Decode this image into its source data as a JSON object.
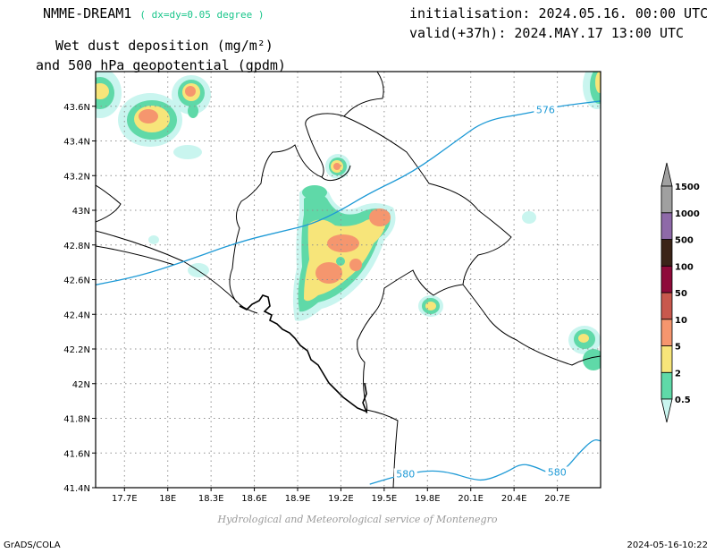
{
  "header": {
    "model": "NMME-DREAM1",
    "resolution": "( dx=dy=0.05 degree )",
    "initialisation": "initialisation: 2024.05.16. 00:00 UTC",
    "valid": "valid(+37h): 2024.MAY.17 13:00 UTC",
    "title_line1": "Wet dust deposition (mg/m²)",
    "title_line2": "and 500 hPa geopotential (gpdm)"
  },
  "credit": "Hydrological and Meteorological service of Montenegro",
  "footer": {
    "left": "GrADS/COLA",
    "right": "2024-05-16-10:22"
  },
  "map": {
    "lon_range": [
      17.5,
      21.0
    ],
    "lat_range": [
      41.4,
      43.8
    ],
    "lon_ticks": [
      {
        "v": 17.7,
        "label": "17.7E"
      },
      {
        "v": 18.0,
        "label": "18E"
      },
      {
        "v": 18.3,
        "label": "18.3E"
      },
      {
        "v": 18.6,
        "label": "18.6E"
      },
      {
        "v": 18.9,
        "label": "18.9E"
      },
      {
        "v": 19.2,
        "label": "19.2E"
      },
      {
        "v": 19.5,
        "label": "19.5E"
      },
      {
        "v": 19.8,
        "label": "19.8E"
      },
      {
        "v": 20.1,
        "label": "20.1E"
      },
      {
        "v": 20.4,
        "label": "20.4E"
      },
      {
        "v": 20.7,
        "label": "20.7E"
      }
    ],
    "lat_ticks": [
      {
        "v": 41.4,
        "label": "41.4N"
      },
      {
        "v": 41.6,
        "label": "41.6N"
      },
      {
        "v": 41.8,
        "label": "41.8N"
      },
      {
        "v": 42.0,
        "label": "42N"
      },
      {
        "v": 42.2,
        "label": "42.2N"
      },
      {
        "v": 42.4,
        "label": "42.4N"
      },
      {
        "v": 42.6,
        "label": "42.6N"
      },
      {
        "v": 42.8,
        "label": "42.8N"
      },
      {
        "v": 43.0,
        "label": "43N"
      },
      {
        "v": 43.2,
        "label": "43.2N"
      },
      {
        "v": 43.4,
        "label": "43.4N"
      },
      {
        "v": 43.6,
        "label": "43.6N"
      }
    ],
    "gridlines": true,
    "contours": [
      {
        "label": "576",
        "points": [
          [
            17.5,
            42.57
          ],
          [
            17.8,
            42.62
          ],
          [
            18.1,
            42.7
          ],
          [
            18.5,
            42.82
          ],
          [
            18.8,
            42.88
          ],
          [
            19.0,
            42.92
          ],
          [
            19.2,
            43.0
          ],
          [
            19.4,
            43.1
          ],
          [
            19.7,
            43.22
          ],
          [
            20.0,
            43.4
          ],
          [
            20.2,
            43.52
          ],
          [
            20.5,
            43.56
          ],
          [
            20.7,
            43.6
          ],
          [
            21.0,
            43.63
          ]
        ],
        "label_at": [
          20.55,
          43.57
        ]
      },
      {
        "label": "580",
        "points": [
          [
            19.4,
            41.42
          ],
          [
            19.6,
            41.47
          ],
          [
            19.8,
            41.5
          ],
          [
            19.95,
            41.49
          ],
          [
            20.1,
            41.45
          ],
          [
            20.2,
            41.44
          ],
          [
            20.35,
            41.49
          ],
          [
            20.45,
            41.54
          ],
          [
            20.55,
            41.52
          ],
          [
            20.65,
            41.48
          ],
          [
            20.75,
            41.5
          ],
          [
            20.85,
            41.6
          ],
          [
            20.95,
            41.68
          ],
          [
            21.0,
            41.67
          ]
        ],
        "label_at_list": [
          [
            19.58,
            41.47
          ],
          [
            20.63,
            41.48
          ]
        ]
      }
    ],
    "legend": {
      "levels": [
        "0.5",
        "2",
        "5",
        "10",
        "50",
        "100",
        "500",
        "1000",
        "1500"
      ],
      "colors": [
        "#c9f5ef",
        "#5fd9a8",
        "#f7e57a",
        "#f5966e",
        "#c8584d",
        "#8e0b3a",
        "#3b2418",
        "#8e6aa8",
        "#a0a0a0"
      ]
    }
  }
}
